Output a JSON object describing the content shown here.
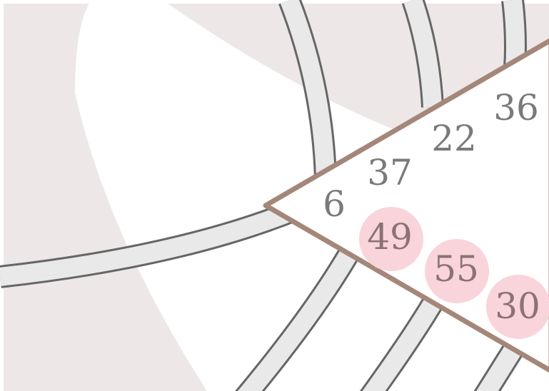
{
  "numbers": [
    6,
    37,
    22,
    36
  ],
  "highlighted_numbers": [
    49,
    55,
    30
  ]
}
